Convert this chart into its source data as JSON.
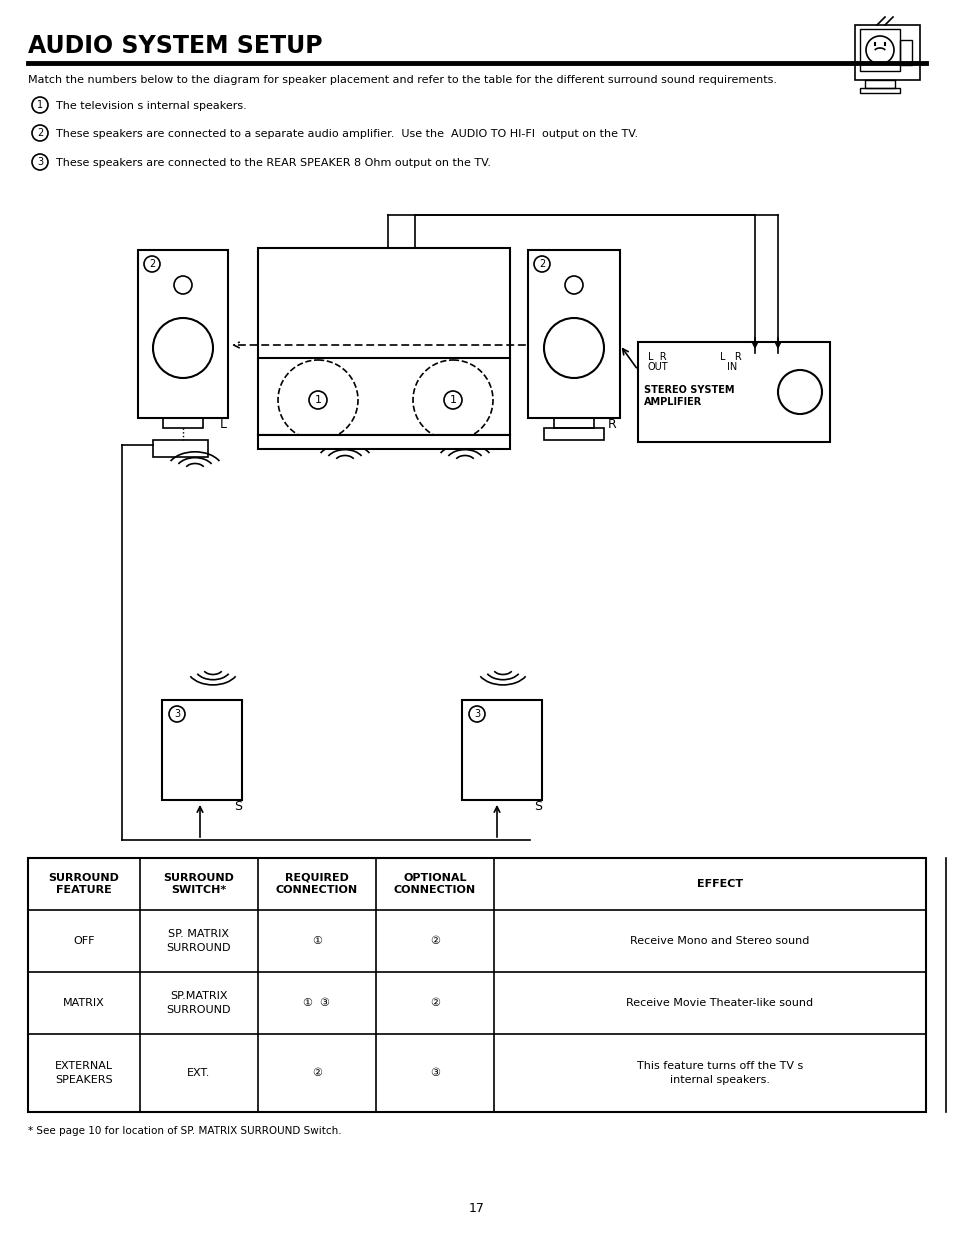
{
  "title": "AUDIO SYSTEM SETUP",
  "page_number": "17",
  "intro_text": "Match the numbers below to the diagram for speaker placement and refer to the table for the different surround sound requirements.",
  "bullets": [
    "The television s internal speakers.",
    "These speakers are connected to a separate audio amplifier.  Use the  AUDIO TO HI-FI  output on the TV.",
    "These speakers are connected to the REAR SPEAKER 8 Ohm output on the TV."
  ],
  "table_headers": [
    "SURROUND\nFEATURE",
    "SURROUND\nSWITCH*",
    "REQUIRED\nCONNECTION",
    "OPTIONAL\nCONNECTION",
    "EFFECT"
  ],
  "table_rows": [
    [
      "OFF",
      "SP. MATRIX\nSURROUND",
      "①",
      "②",
      "Receive Mono and Stereo sound"
    ],
    [
      "MATRIX",
      "SP.MATRIX\nSURROUND",
      "①  ③",
      "②",
      "Receive Movie Theater-like sound"
    ],
    [
      "EXTERNAL\nSPEAKERS",
      "EXT.",
      "②",
      "③",
      "This feature turns off the TV s\ninternal speakers."
    ]
  ],
  "footnote": "* See page 10 for location of SP. MATRIX SURROUND Switch.",
  "background": "#ffffff",
  "text_color": "#000000"
}
